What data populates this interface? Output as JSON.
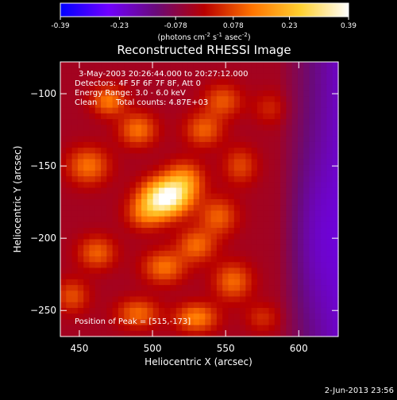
{
  "chart_data": {
    "type": "heatmap",
    "title": "Reconstructed RHESSI Image",
    "xlabel": "Heliocentric X (arcsec)",
    "ylabel": "Heliocentric Y (arcsec)",
    "xlim": [
      437,
      627
    ],
    "ylim": [
      -268,
      -78
    ],
    "x_ticks": [
      450,
      500,
      550,
      600
    ],
    "y_ticks": [
      -100,
      -150,
      -200,
      -250
    ],
    "colorbar": {
      "range": [
        -0.39,
        0.39
      ],
      "ticks": [
        -0.39,
        -0.23,
        -0.078,
        0.078,
        0.23,
        0.39
      ],
      "tick_labels": [
        "-0.39",
        "-0.23",
        "-0.078",
        "0.078",
        "0.23",
        "0.39"
      ],
      "unit_parts": [
        "(photons cm",
        "-2",
        " s",
        "-1",
        " asec",
        "-2",
        ")"
      ],
      "colors": [
        "#0000ff",
        "#7000ff",
        "#6a0a78",
        "#b80000",
        "#ff7400",
        "#ffd030",
        "#ffffff"
      ]
    },
    "annotations": {
      "time": "3-May-2003 20:26:44.000 to 20:27:12.000",
      "detectors": "Detectors: 4F 5F 6F 7F 8F, Att 0",
      "energy": "Energy Range: 3.0 - 6.0 keV",
      "clean": "Clean",
      "counts": "Total counts: 4.87E+03",
      "peak": "Position of Peak = [515,-173]"
    },
    "peak": {
      "x": 515,
      "y": -173
    },
    "sources": [
      {
        "x": 509,
        "y": -172,
        "sx": 11,
        "sy": 9,
        "amp": 0.42
      },
      {
        "x": 522,
        "y": -160,
        "sx": 9,
        "sy": 9,
        "amp": 0.18
      },
      {
        "x": 495,
        "y": -183,
        "sx": 9,
        "sy": 8,
        "amp": 0.14
      },
      {
        "x": 470,
        "y": -105,
        "sx": 8,
        "sy": 7,
        "amp": 0.17
      },
      {
        "x": 490,
        "y": -125,
        "sx": 9,
        "sy": 8,
        "amp": 0.16
      },
      {
        "x": 456,
        "y": -150,
        "sx": 10,
        "sy": 9,
        "amp": 0.16
      },
      {
        "x": 535,
        "y": -125,
        "sx": 9,
        "sy": 8,
        "amp": 0.14
      },
      {
        "x": 548,
        "y": -105,
        "sx": 9,
        "sy": 8,
        "amp": 0.13
      },
      {
        "x": 462,
        "y": -210,
        "sx": 9,
        "sy": 8,
        "amp": 0.14
      },
      {
        "x": 445,
        "y": -240,
        "sx": 8,
        "sy": 8,
        "amp": 0.12
      },
      {
        "x": 508,
        "y": -220,
        "sx": 10,
        "sy": 8,
        "amp": 0.16
      },
      {
        "x": 530,
        "y": -205,
        "sx": 9,
        "sy": 8,
        "amp": 0.15
      },
      {
        "x": 545,
        "y": -185,
        "sx": 9,
        "sy": 9,
        "amp": 0.14
      },
      {
        "x": 555,
        "y": -230,
        "sx": 9,
        "sy": 9,
        "amp": 0.15
      },
      {
        "x": 530,
        "y": -255,
        "sx": 10,
        "sy": 7,
        "amp": 0.18
      },
      {
        "x": 490,
        "y": -252,
        "sx": 10,
        "sy": 7,
        "amp": 0.15
      },
      {
        "x": 560,
        "y": -150,
        "sx": 8,
        "sy": 9,
        "amp": 0.11
      },
      {
        "x": 575,
        "y": -255,
        "sx": 8,
        "sy": 7,
        "amp": 0.08
      },
      {
        "x": 580,
        "y": -110,
        "sx": 8,
        "sy": 8,
        "amp": 0.07
      },
      {
        "x": 610,
        "y": -200,
        "sx": 12,
        "sy": 40,
        "amp": -0.06
      }
    ]
  },
  "footer": {
    "date": "2-Jun-2013 23:56"
  }
}
